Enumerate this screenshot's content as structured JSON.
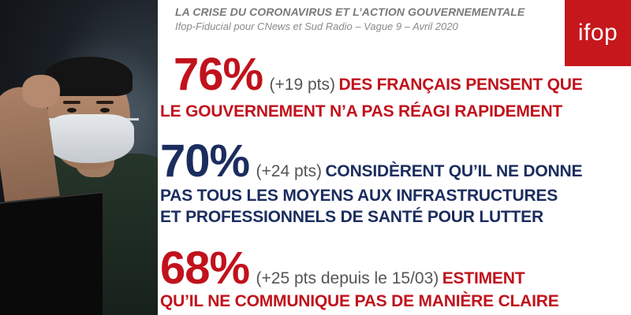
{
  "header": {
    "title": "LA CRISE DU CORONAVIRUS ET L’ACTION GOUVERNEMENTALE",
    "subtitle": "Ifop-Fiducial pour CNews et Sud Radio – Vague 9 – Avril 2020",
    "logo_text": "ifop"
  },
  "photo": {
    "icon": "masked-man-at-laptop-photo"
  },
  "statements": [
    {
      "percent": "76%",
      "delta": "(+19 pts)",
      "lead": "DES FRANÇAIS PENSENT QUE",
      "continuation": [
        "LE GOUVERNEMENT N’A PAS RÉAGI RAPIDEMENT"
      ],
      "color": "#c1121c"
    },
    {
      "percent": "70%",
      "delta": "(+24 pts)",
      "lead": "CONSIDÈRENT QU’IL NE DONNE",
      "continuation": [
        "PAS TOUS LES MOYENS AUX INFRASTRUCTURES",
        "ET PROFESSIONNELS DE SANTÉ POUR LUTTER"
      ],
      "color": "#1b2d5e"
    },
    {
      "percent": "68%",
      "delta": "(+25 pts depuis le 15/03)",
      "lead": "ESTIMENT",
      "continuation": [
        "QU’IL NE COMMUNIQUE PAS DE MANIÈRE CLAIRE"
      ],
      "color": "#c1121c"
    }
  ],
  "colors": {
    "accent_red": "#c1121c",
    "navy": "#1b2d5e",
    "logo_bg": "#c5171c"
  }
}
